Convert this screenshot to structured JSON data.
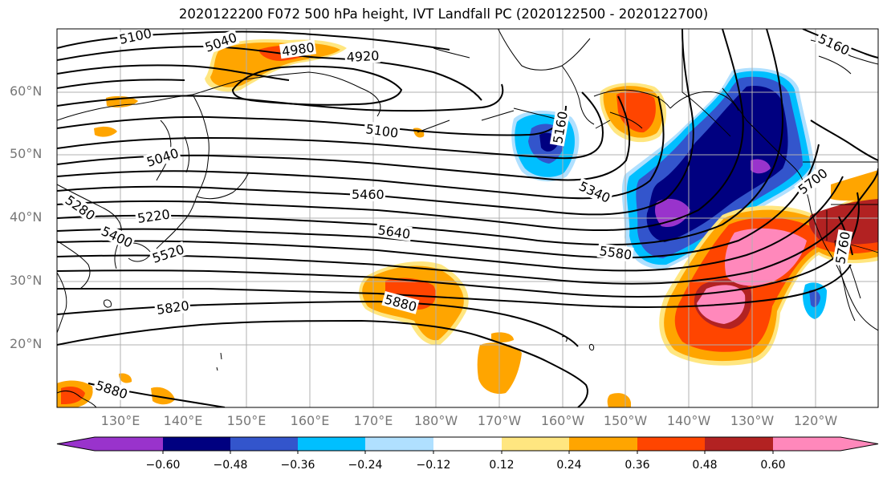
{
  "title": "2020122200 F072 500 hPa height, IVT Landfall PC (2020122500 - 2020122700)",
  "latitude_labels": [
    "60°N",
    "50°N",
    "40°N",
    "30°N",
    "20°N"
  ],
  "longitude_labels": [
    "130°E",
    "140°E",
    "150°E",
    "160°E",
    "170°E",
    "180°W",
    "170°W",
    "160°W",
    "150°W",
    "140°W",
    "130°W",
    "120°W"
  ],
  "contour_labels": [
    "5100",
    "5040",
    "4980",
    "4920",
    "5160",
    "5100",
    "5040",
    "5160",
    "5460",
    "5340",
    "5220",
    "5280",
    "5400",
    "5520",
    "5640",
    "5580",
    "5700",
    "5760",
    "5820",
    "5880",
    "5880"
  ],
  "colorbar": {
    "tick_labels": [
      "−0.60",
      "−0.48",
      "−0.36",
      "−0.24",
      "−0.12",
      "0.12",
      "0.24",
      "0.36",
      "0.48",
      "0.60"
    ],
    "colors": [
      "#9933cc",
      "#000080",
      "#3355cc",
      "#00bfff",
      "#b0e0ff",
      "#ffffff",
      "#ffe680",
      "#ffa500",
      "#ff4500",
      "#b22222",
      "#ff88bb"
    ]
  },
  "shading_colors": {
    "neg_60": "#9933cc",
    "neg_48": "#000080",
    "neg_36": "#3355cc",
    "neg_24": "#00bfff",
    "neg_12": "#b0e0ff",
    "pos_12": "#ffe680",
    "pos_24": "#ffa500",
    "pos_36": "#ff4500",
    "pos_48": "#b22222",
    "pos_60": "#ff88bb"
  }
}
